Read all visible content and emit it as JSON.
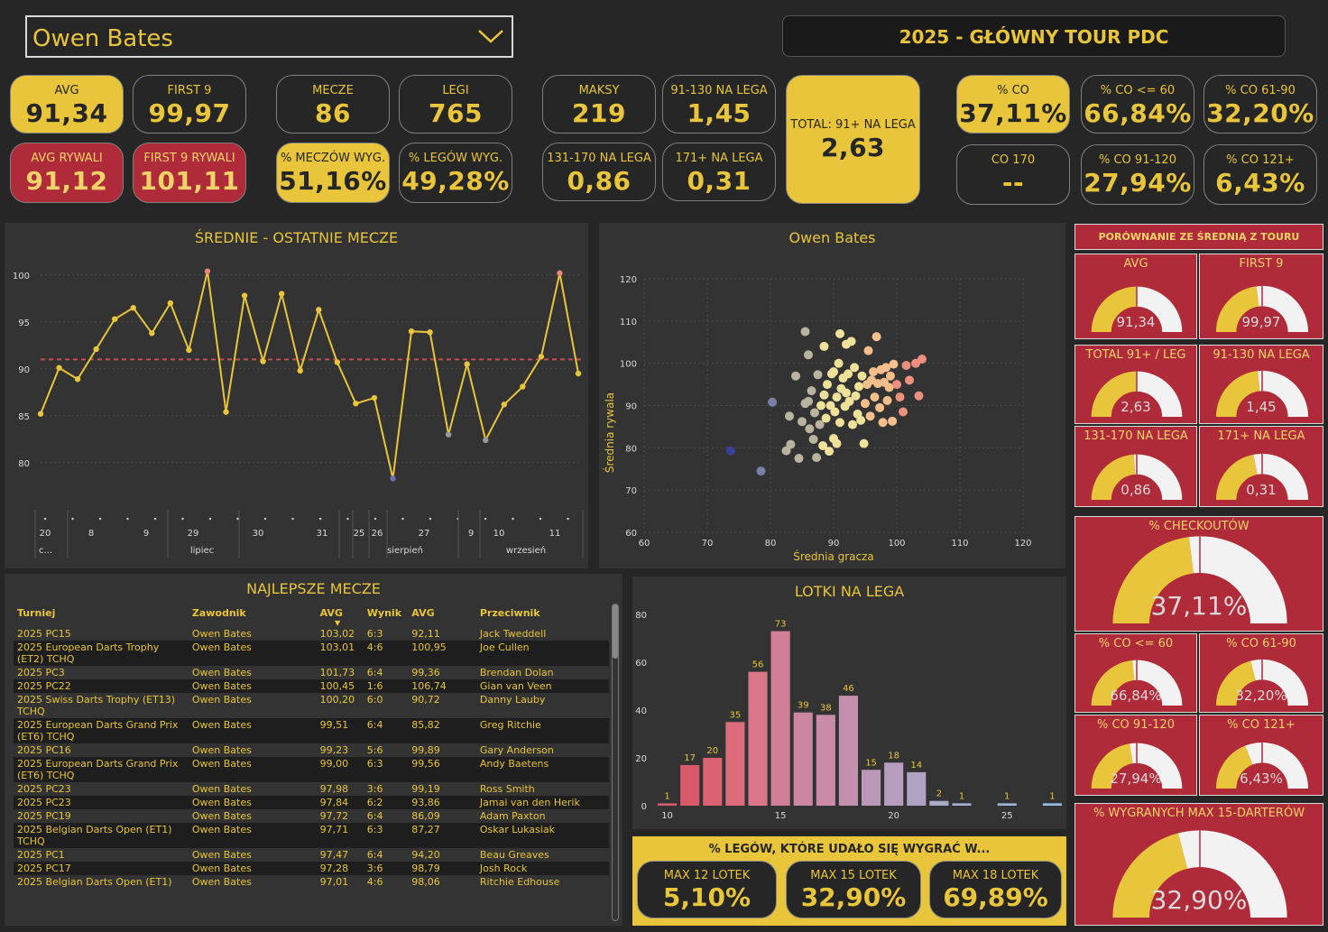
{
  "slicer": {
    "player": "Owen Bates"
  },
  "title": "2025 - GŁÓWNY TOUR PDC",
  "kpis": [
    {
      "label": "AVG",
      "value": "91,34"
    },
    {
      "label": "FIRST 9",
      "value": "99,97"
    },
    {
      "label": "AVG RYWALI",
      "value": "91,12"
    },
    {
      "label": "FIRST 9 RYWALI",
      "value": "101,11"
    },
    {
      "label": "MECZE",
      "value": "86"
    },
    {
      "label": "LEGI",
      "value": "765"
    },
    {
      "label": "% MECZÓW WYG.",
      "value": "51,16%"
    },
    {
      "label": "% LEGÓW WYG.",
      "value": "49,28%"
    },
    {
      "label": "MAKSY",
      "value": "219"
    },
    {
      "label": "91-130 NA LEGA",
      "value": "1,45"
    },
    {
      "label": "131-170 NA LEGA",
      "value": "0,86"
    },
    {
      "label": "171+ NA LEGA",
      "value": "0,31"
    },
    {
      "label": "TOTAL: 91+ NA LEGA",
      "value": "2,63"
    },
    {
      "label": "% CO",
      "value": "37,11%"
    },
    {
      "label": "% CO <= 60",
      "value": "66,84%"
    },
    {
      "label": "% CO 61-90",
      "value": "32,20%"
    },
    {
      "label": "CO 170",
      "value": "--"
    },
    {
      "label": "% CO 91-120",
      "value": "27,94%"
    },
    {
      "label": "% CO 121+",
      "value": "6,43%"
    }
  ],
  "colors": {
    "yellow": "#e8c53a",
    "red": "#b02b3a",
    "bg": "#262626",
    "panel": "#333333"
  },
  "line_chart": {
    "title": "ŚREDNIE - OSTATNIE MECZE",
    "y_ticks": [
      "100",
      "95",
      "90",
      "85",
      "80"
    ],
    "x_day_labels": [
      "20",
      "8",
      "9",
      "29",
      "30",
      "31",
      "25",
      "26",
      "27",
      "9",
      "10",
      "11"
    ],
    "x_month_labels": [
      "c...",
      "lipiec",
      "sierpień",
      "wrzesień"
    ]
  },
  "chart_data": [
    {
      "type": "line",
      "title": "ŚREDNIE - OSTATNIE MECZE",
      "ylim": [
        77,
        102
      ],
      "reference_line": 91.0,
      "y": [
        85.2,
        90.1,
        88.9,
        92.1,
        95.3,
        96.5,
        93.8,
        97.0,
        92.0,
        100.4,
        85.4,
        97.8,
        90.8,
        98.0,
        89.8,
        96.3,
        90.7,
        86.3,
        86.9,
        78.3,
        94.0,
        93.9,
        83.0,
        90.5,
        82.4,
        86.2,
        88.1,
        91.3,
        100.2,
        89.5
      ]
    },
    {
      "type": "scatter",
      "title": "Owen Bates",
      "xlabel": "Średnia gracza",
      "ylabel": "Średnia rywala",
      "xlim": [
        60,
        120
      ],
      "ylim": [
        60,
        120
      ],
      "x_ticks": [
        "60",
        "70",
        "80",
        "90",
        "100",
        "110",
        "120"
      ],
      "y_ticks": [
        "120",
        "110",
        "100",
        "90",
        "80",
        "70",
        "60"
      ],
      "points": [
        [
          73.7,
          79.3
        ],
        [
          78.5,
          74.5
        ],
        [
          80.3,
          90.8
        ],
        [
          82.5,
          79.3
        ],
        [
          83.0,
          87.5
        ],
        [
          83.2,
          80.8
        ],
        [
          84.0,
          97.0
        ],
        [
          84.5,
          77.5
        ],
        [
          85.0,
          86.2
        ],
        [
          85.5,
          90.5
        ],
        [
          86.0,
          91.0
        ],
        [
          86.2,
          84.5
        ],
        [
          86.5,
          93.5
        ],
        [
          86.8,
          82.0
        ],
        [
          87.0,
          88.3
        ],
        [
          87.3,
          77.7
        ],
        [
          87.5,
          97.3
        ],
        [
          87.8,
          85.5
        ],
        [
          88.0,
          90.0
        ],
        [
          88.3,
          80.5
        ],
        [
          88.5,
          92.5
        ],
        [
          88.8,
          87.0
        ],
        [
          89.0,
          95.0
        ],
        [
          89.3,
          79.2
        ],
        [
          89.5,
          90.0
        ],
        [
          89.7,
          97.5
        ],
        [
          90.0,
          82.2
        ],
        [
          90.2,
          88.5
        ],
        [
          90.5,
          92.0
        ],
        [
          90.8,
          100.0
        ],
        [
          91.0,
          86.0
        ],
        [
          91.2,
          94.0
        ],
        [
          91.5,
          96.5
        ],
        [
          91.8,
          89.8
        ],
        [
          92.0,
          93.0
        ],
        [
          92.3,
          97.5
        ],
        [
          92.5,
          91.0
        ],
        [
          92.8,
          105.2
        ],
        [
          93.0,
          85.5
        ],
        [
          93.3,
          99.0
        ],
        [
          93.5,
          92.3
        ],
        [
          93.8,
          88.0
        ],
        [
          94.0,
          94.5
        ],
        [
          94.3,
          86.5
        ],
        [
          94.5,
          97.0
        ],
        [
          94.8,
          81.0
        ],
        [
          95.0,
          90.5
        ],
        [
          95.3,
          95.0
        ],
        [
          95.5,
          103.0
        ],
        [
          95.8,
          87.5
        ],
        [
          96.0,
          96.0
        ],
        [
          96.3,
          98.0
        ],
        [
          96.5,
          92.0
        ],
        [
          96.8,
          106.3
        ],
        [
          97.0,
          95.2
        ],
        [
          97.3,
          89.5
        ],
        [
          97.5,
          98.5
        ],
        [
          97.8,
          86.0
        ],
        [
          98.0,
          95.5
        ],
        [
          98.3,
          99.0
        ],
        [
          98.5,
          91.2
        ],
        [
          98.8,
          94.3
        ],
        [
          99.0,
          97.0
        ],
        [
          99.3,
          86.3
        ],
        [
          99.5,
          99.8
        ],
        [
          100.0,
          95.0
        ],
        [
          100.5,
          92.0
        ],
        [
          101.0,
          88.5
        ],
        [
          101.5,
          99.5
        ],
        [
          102.0,
          96.0
        ],
        [
          103.0,
          100.0
        ],
        [
          103.5,
          92.3
        ],
        [
          104.0,
          101.0
        ],
        [
          85.5,
          107.5
        ],
        [
          88.5,
          104.0
        ],
        [
          91.0,
          107.0
        ],
        [
          92.0,
          104.5
        ],
        [
          86.0,
          102.0
        ],
        [
          90.0,
          98.0
        ],
        [
          90.5,
          81.0
        ]
      ]
    },
    {
      "type": "bar",
      "title": "LOTKI NA LEGA",
      "ylim": [
        0,
        80
      ],
      "y_ticks": [
        "80",
        "60",
        "40",
        "20",
        "0"
      ],
      "x_ticks": [
        "10",
        "15",
        "20",
        "25"
      ],
      "categories": [
        10,
        11,
        12,
        13,
        14,
        15,
        16,
        17,
        18,
        19,
        20,
        21,
        22,
        23,
        24,
        25,
        26,
        27
      ],
      "values": [
        1,
        17,
        20,
        35,
        56,
        73,
        39,
        38,
        46,
        15,
        18,
        14,
        2,
        1,
        0,
        1,
        0,
        1
      ],
      "labels": [
        "1",
        "17",
        "20",
        "35",
        "56",
        "73",
        "39",
        "38",
        "46",
        "15",
        "18",
        "14",
        "2",
        "1",
        "",
        "1",
        "",
        "1"
      ]
    }
  ],
  "best_matches": {
    "title": "NAJLEPSZE MECZE",
    "headers": [
      "Turniej",
      "Zawodnik",
      "AVG",
      "Wynik",
      "AVG",
      "Przeciwnik"
    ],
    "rows": [
      [
        "2025 PC15",
        "Owen Bates",
        "103,02",
        "6:3",
        "92,11",
        "Jack Tweddell"
      ],
      [
        "2025 European Darts Trophy (ET2) TCHQ",
        "Owen Bates",
        "103,01",
        "4:6",
        "100,95",
        "Joe Cullen"
      ],
      [
        "2025 PC3",
        "Owen Bates",
        "101,73",
        "6:4",
        "99,36",
        "Brendan Dolan"
      ],
      [
        "2025 PC22",
        "Owen Bates",
        "100,45",
        "1:6",
        "106,74",
        "Gian van Veen"
      ],
      [
        "2025 Swiss Darts Trophy (ET13) TCHQ",
        "Owen Bates",
        "100,20",
        "6:0",
        "90,72",
        "Danny Lauby"
      ],
      [
        "2025 European Darts Grand Prix (ET6) TCHQ",
        "Owen Bates",
        "99,51",
        "6:4",
        "85,82",
        "Greg Ritchie"
      ],
      [
        "2025 PC16",
        "Owen Bates",
        "99,23",
        "5:6",
        "99,89",
        "Gary Anderson"
      ],
      [
        "2025 European Darts Grand Prix (ET6) TCHQ",
        "Owen Bates",
        "99,00",
        "6:3",
        "99,56",
        "Andy Baetens"
      ],
      [
        "2025 PC23",
        "Owen Bates",
        "97,98",
        "3:6",
        "99,19",
        "Ross Smith"
      ],
      [
        "2025 PC23",
        "Owen Bates",
        "97,84",
        "6:2",
        "93,86",
        "Jamai van den Herik"
      ],
      [
        "2025 PC19",
        "Owen Bates",
        "97,72",
        "6:4",
        "86,09",
        "Adam Paxton"
      ],
      [
        "2025 Belgian Darts Open (ET1) TCHQ",
        "Owen Bates",
        "97,71",
        "6:3",
        "87,27",
        "Oskar Lukasiak"
      ],
      [
        "2025 PC1",
        "Owen Bates",
        "97,47",
        "6:4",
        "94,20",
        "Beau Greaves"
      ],
      [
        "2025 PC17",
        "Owen Bates",
        "97,28",
        "3:6",
        "98,79",
        "Josh Rock"
      ],
      [
        "2025 Belgian Darts Open (ET1)",
        "Owen Bates",
        "97,01",
        "4:6",
        "98,06",
        "Ritchie Edhouse"
      ]
    ]
  },
  "legs_won": {
    "title": "% LEGÓW, KTÓRE UDAŁO SIĘ WYGRAĆ W...",
    "items": [
      {
        "label": "MAX 12 LOTEK",
        "value": "5,10%"
      },
      {
        "label": "MAX 15 LOTEK",
        "value": "32,90%"
      },
      {
        "label": "MAX 18 LOTEK",
        "value": "69,89%"
      }
    ]
  },
  "comparison": {
    "header": "PORÓWNANIE ZE ŚREDNIĄ Z TOURU",
    "gauges": [
      {
        "label": "AVG",
        "value": "91,34",
        "fraction": 0.5
      },
      {
        "label": "FIRST 9",
        "value": "99,97",
        "fraction": 0.46
      },
      {
        "label": "TOTAL 91+ / LEG",
        "value": "2,63",
        "fraction": 0.5
      },
      {
        "label": "91-130 NA LEGA",
        "value": "1,45",
        "fraction": 0.47
      },
      {
        "label": "131-170 NA LEGA",
        "value": "0,86",
        "fraction": 0.48
      },
      {
        "label": "171+ NA LEGA",
        "value": "0,31",
        "fraction": 0.44
      },
      {
        "label": "% CHECKOUTÓW",
        "value": "37,11%",
        "fraction": 0.46
      },
      {
        "label": "% CO <= 60",
        "value": "66,84%",
        "fraction": 0.47
      },
      {
        "label": "% CO 61-90",
        "value": "32,20%",
        "fraction": 0.42
      },
      {
        "label": "% CO 91-120",
        "value": "27,94%",
        "fraction": 0.45
      },
      {
        "label": "% CO 121+",
        "value": "6,43%",
        "fraction": 0.38
      },
      {
        "label": "% WYGRANYCH MAX 15-DARTERÓW",
        "value": "32,90%",
        "fraction": 0.42
      }
    ]
  }
}
